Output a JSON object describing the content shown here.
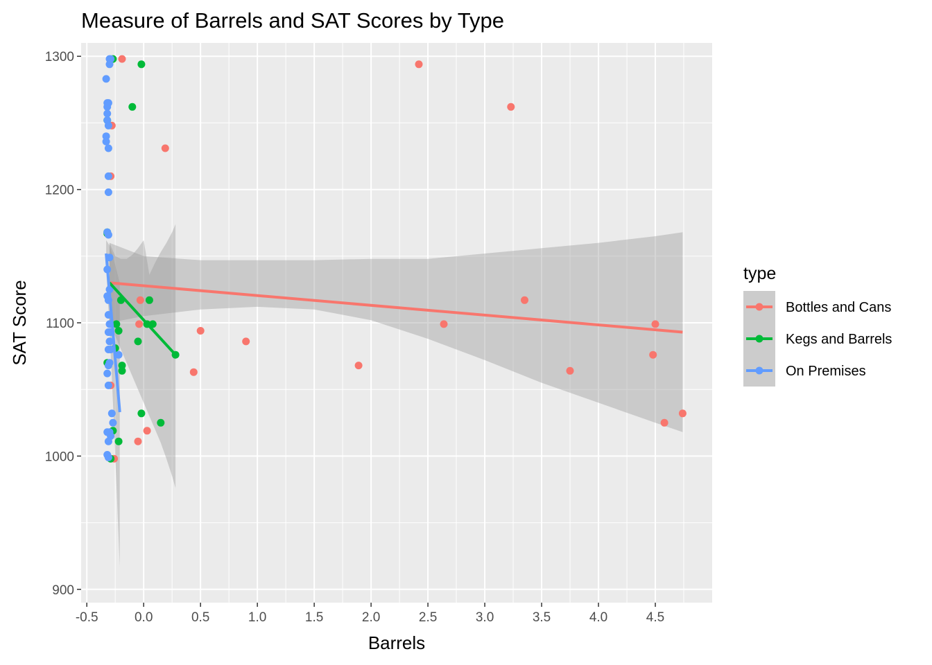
{
  "chart_data": {
    "type": "scatter",
    "title": "Measure of Barrels and SAT Scores by Type",
    "xlabel": "Barrels",
    "ylabel": "SAT Score",
    "xlim": [
      -0.55,
      5.0
    ],
    "ylim": [
      890,
      1310
    ],
    "x_ticks": [
      -0.5,
      0.0,
      0.5,
      1.0,
      1.5,
      2.0,
      2.5,
      3.0,
      3.5,
      4.0,
      4.5
    ],
    "x_tick_labels": [
      "-0.5",
      "0.0",
      "0.5",
      "1.0",
      "1.5",
      "2.0",
      "2.5",
      "3.0",
      "3.5",
      "4.0",
      "4.5"
    ],
    "y_ticks": [
      900,
      1000,
      1100,
      1200,
      1300
    ],
    "y_tick_labels": [
      "900",
      "1000",
      "1100",
      "1200",
      "1300"
    ],
    "background": "#ebebeb",
    "grid": true,
    "legend": {
      "title": "type",
      "placement": "right"
    },
    "series": [
      {
        "name": "Bottles and Cans",
        "color": "#f8766d",
        "points": [
          [
            -0.19,
            1298
          ],
          [
            2.42,
            1294
          ],
          [
            3.23,
            1262
          ],
          [
            0.19,
            1231
          ],
          [
            -0.28,
            1248
          ],
          [
            -0.29,
            1210
          ],
          [
            -0.03,
            1117
          ],
          [
            3.35,
            1117
          ],
          [
            -0.04,
            1099
          ],
          [
            2.64,
            1099
          ],
          [
            4.5,
            1099
          ],
          [
            0.5,
            1094
          ],
          [
            0.9,
            1086
          ],
          [
            4.48,
            1076
          ],
          [
            1.89,
            1068
          ],
          [
            0.44,
            1063
          ],
          [
            3.75,
            1064
          ],
          [
            -0.29,
            1053
          ],
          [
            4.74,
            1032
          ],
          [
            4.58,
            1025
          ],
          [
            0.03,
            1019
          ],
          [
            -0.05,
            1011
          ],
          [
            -0.26,
            998
          ]
        ],
        "fit": {
          "x": [
            -0.3,
            4.74
          ],
          "y": [
            1130,
            1093
          ]
        },
        "band": {
          "x": [
            -0.3,
            0.0,
            0.5,
            1.0,
            1.5,
            2.0,
            2.5,
            3.0,
            3.5,
            4.0,
            4.5,
            4.74
          ],
          "lo": [
            1100,
            1105,
            1110,
            1112,
            1110,
            1102,
            1088,
            1072,
            1055,
            1040,
            1025,
            1018
          ],
          "hi": [
            1160,
            1150,
            1147,
            1147,
            1147,
            1148,
            1148,
            1152,
            1156,
            1160,
            1165,
            1168
          ]
        }
      },
      {
        "name": "Kegs and Barrels",
        "color": "#00ba38",
        "points": [
          [
            -0.27,
            1298
          ],
          [
            -0.02,
            1294
          ],
          [
            -0.1,
            1262
          ],
          [
            -0.32,
            1252
          ],
          [
            -0.32,
            1168
          ],
          [
            -0.32,
            1167
          ],
          [
            -0.2,
            1117
          ],
          [
            0.05,
            1117
          ],
          [
            -0.24,
            1099
          ],
          [
            0.03,
            1099
          ],
          [
            0.08,
            1099
          ],
          [
            -0.22,
            1094
          ],
          [
            -0.05,
            1086
          ],
          [
            0.28,
            1076
          ],
          [
            -0.19,
            1068
          ],
          [
            -0.19,
            1064
          ],
          [
            -0.32,
            1070
          ],
          [
            -0.25,
            1081
          ],
          [
            -0.02,
            1032
          ],
          [
            0.15,
            1025
          ],
          [
            -0.27,
            1019
          ],
          [
            -0.22,
            1011
          ],
          [
            -0.29,
            998
          ]
        ],
        "fit": {
          "x": [
            -0.3,
            0.28
          ],
          "y": [
            1130,
            1076
          ]
        },
        "band": {
          "x": [
            -0.3,
            -0.25,
            -0.2,
            -0.15,
            -0.1,
            -0.05,
            0.0,
            0.05,
            0.1,
            0.15,
            0.2,
            0.25,
            0.28
          ],
          "lo": [
            1100,
            1090,
            1080,
            1070,
            1060,
            1050,
            1040,
            1030,
            1020,
            1010,
            998,
            985,
            976
          ],
          "hi": [
            1160,
            1150,
            1148,
            1148,
            1151,
            1156,
            1162,
            1136,
            1145,
            1153,
            1160,
            1168,
            1174
          ]
        }
      },
      {
        "name": "On Premises",
        "color": "#619cff",
        "points": [
          [
            -0.3,
            1298
          ],
          [
            -0.29,
            1298
          ],
          [
            -0.3,
            1294
          ],
          [
            -0.33,
            1283
          ],
          [
            -0.32,
            1265
          ],
          [
            -0.31,
            1265
          ],
          [
            -0.32,
            1262
          ],
          [
            -0.32,
            1257
          ],
          [
            -0.32,
            1252
          ],
          [
            -0.31,
            1248
          ],
          [
            -0.33,
            1240
          ],
          [
            -0.33,
            1236
          ],
          [
            -0.31,
            1231
          ],
          [
            -0.31,
            1210
          ],
          [
            -0.31,
            1198
          ],
          [
            -0.32,
            1168
          ],
          [
            -0.31,
            1166
          ],
          [
            -0.3,
            1149
          ],
          [
            -0.32,
            1140
          ],
          [
            -0.3,
            1125
          ],
          [
            -0.32,
            1120
          ],
          [
            -0.31,
            1117
          ],
          [
            -0.31,
            1106
          ],
          [
            -0.3,
            1099
          ],
          [
            -0.31,
            1093
          ],
          [
            -0.29,
            1093
          ],
          [
            -0.3,
            1086
          ],
          [
            -0.31,
            1080
          ],
          [
            -0.29,
            1080
          ],
          [
            -0.22,
            1076
          ],
          [
            -0.31,
            1068
          ],
          [
            -0.3,
            1070
          ],
          [
            -0.32,
            1062
          ],
          [
            -0.31,
            1053
          ],
          [
            -0.28,
            1032
          ],
          [
            -0.27,
            1025
          ],
          [
            -0.32,
            1018
          ],
          [
            -0.3,
            1018
          ],
          [
            -0.29,
            1015
          ],
          [
            -0.31,
            1011
          ],
          [
            -0.32,
            1001
          ],
          [
            -0.31,
            999
          ]
        ],
        "fit": {
          "x": [
            -0.33,
            -0.21
          ],
          "y": [
            1152,
            1033
          ]
        },
        "band": {
          "x": [
            -0.33,
            -0.3,
            -0.27,
            -0.24,
            -0.21
          ],
          "lo": [
            1140,
            1095,
            1040,
            980,
            917
          ],
          "hi": [
            1162,
            1158,
            1150,
            1140,
            1130
          ]
        }
      }
    ]
  }
}
